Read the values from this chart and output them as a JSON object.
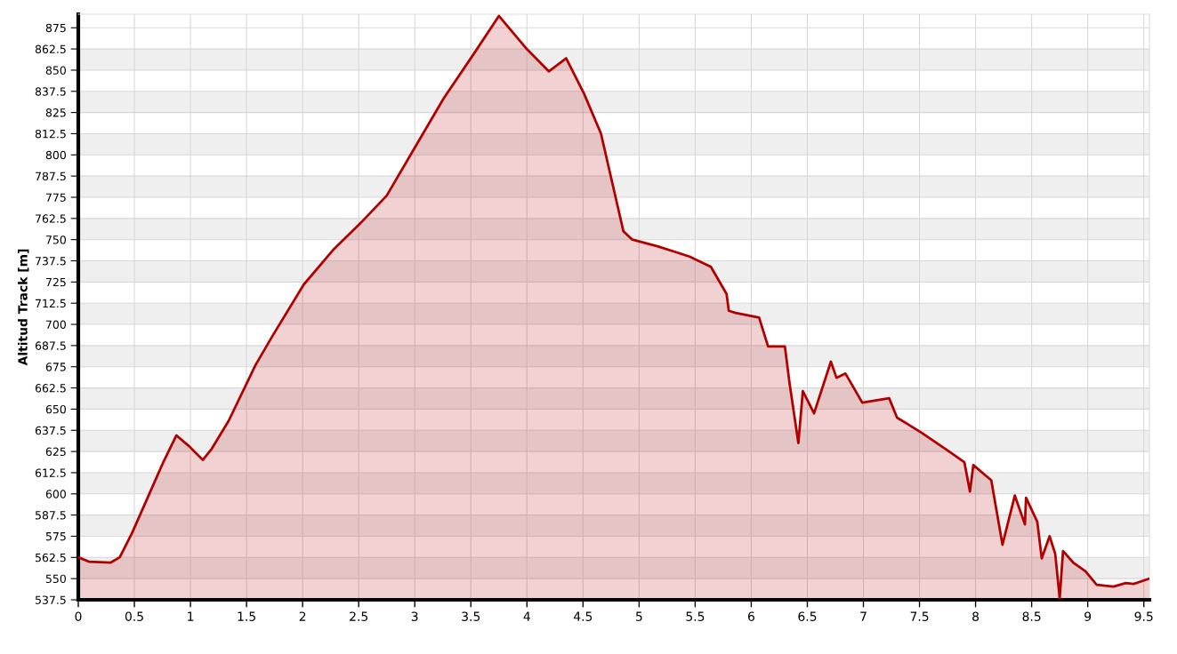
{
  "chart_data": {
    "type": "area",
    "ylabel": "Altitud Track [m]",
    "x": [
      0,
      0.094,
      0.29,
      0.37,
      0.48,
      0.64,
      0.76,
      0.875,
      0.99,
      1.11,
      1.19,
      1.34,
      1.58,
      1.73,
      2.01,
      2.28,
      2.52,
      2.75,
      2.98,
      3.26,
      3.53,
      3.75,
      4.0,
      4.195,
      4.35,
      4.51,
      4.66,
      4.86,
      4.94,
      5.17,
      5.45,
      5.64,
      5.78,
      5.8,
      5.86,
      6.07,
      6.15,
      6.3,
      6.34,
      6.42,
      6.46,
      6.56,
      6.71,
      6.76,
      6.84,
      6.99,
      7.23,
      7.3,
      7.52,
      7.73,
      7.9,
      7.95,
      7.98,
      8.14,
      8.24,
      8.35,
      8.44,
      8.45,
      8.55,
      8.59,
      8.66,
      8.71,
      8.75,
      8.78,
      8.87,
      8.98,
      9.08,
      9.23,
      9.34,
      9.41,
      9.55
    ],
    "series": [
      {
        "color": "#b00000",
        "values": [
          562.6,
          560,
          559.5,
          562.6,
          577,
          601,
          619,
          634.5,
          628,
          620,
          626.6,
          643,
          676,
          693,
          723.5,
          744.5,
          760,
          776,
          802,
          833.6,
          860,
          882,
          862.4,
          849.3,
          857,
          836,
          812.6,
          755,
          750,
          746,
          740,
          734,
          718,
          708,
          706.8,
          704,
          687,
          687,
          666,
          630,
          660.6,
          647.5,
          678,
          668.5,
          671,
          653.8,
          656.4,
          645,
          636,
          626.6,
          618.7,
          601.4,
          617,
          608,
          570,
          599,
          582,
          597.7,
          583.6,
          562,
          575,
          564.7,
          538.5,
          566.3,
          559.5,
          554.3,
          546.4,
          545.3,
          547.4,
          546.9,
          550
        ]
      }
    ],
    "xlim": [
      0,
      9.55
    ],
    "xticks": [
      0,
      0.5,
      1,
      1.5,
      2,
      2.5,
      3,
      3.5,
      4,
      4.5,
      5,
      5.5,
      6,
      6.5,
      7,
      7.5,
      8,
      8.5,
      9,
      9.5
    ],
    "ylim": [
      537.5,
      883
    ],
    "yticks": [
      537.5,
      550,
      562.5,
      575,
      587.5,
      600,
      612.5,
      625,
      637.5,
      650,
      662.5,
      675,
      687.5,
      700,
      712.5,
      725,
      737.5,
      750,
      762.5,
      775,
      787.5,
      800,
      812.5,
      825,
      837.5,
      850,
      862.5,
      875
    ],
    "grid": true
  }
}
